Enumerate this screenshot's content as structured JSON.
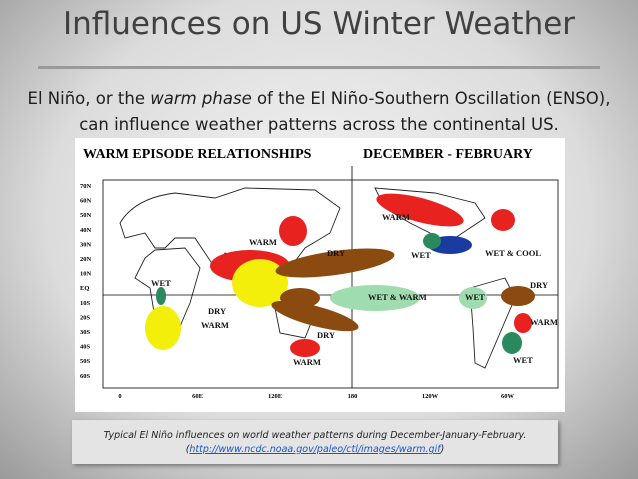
{
  "header": {
    "title": "Influences on US Winter Weather"
  },
  "intro": {
    "before": "El Niño, or the ",
    "emphasis": "warm phase",
    "after": " of the El Niño-Southern Oscillation (ENSO), can influence weather patterns across the continental US."
  },
  "map": {
    "title_left": "WARM EPISODE RELATIONSHIPS",
    "title_right": "DECEMBER - FEBRUARY",
    "lat_labels": [
      "70N",
      "60N",
      "50N",
      "40N",
      "30N",
      "20N",
      "10N",
      "EQ",
      "10S",
      "20S",
      "30S",
      "40S",
      "50S",
      "60S"
    ],
    "lon_labels": [
      "0",
      "60E",
      "120E",
      "180",
      "120W",
      "60W"
    ],
    "regions": [
      "WARM",
      "WARM",
      "DRY",
      "WET",
      "WET & COOL",
      "WET",
      "DRY",
      "WET & WARM",
      "WET",
      "DRY",
      "WARM",
      "DRY",
      "WARM",
      "WET",
      "WARM"
    ]
  },
  "caption": {
    "text": "Typical El Niño influences on world weather patterns during December-January-February.",
    "link": "http://www.ncdc.noaa.gov/paleo/ctl/images/warm.gif"
  }
}
